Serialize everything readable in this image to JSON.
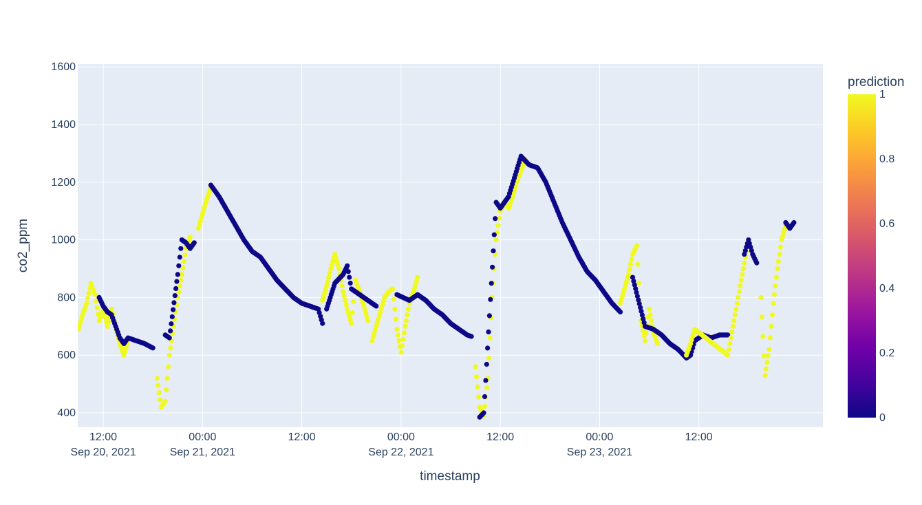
{
  "chart_data": {
    "type": "scatter",
    "xlabel": "timestamp",
    "ylabel": "co2_ppm",
    "xlim": [
      "2021-09-20T08:55",
      "2021-09-24T03:00"
    ],
    "ylim": [
      350,
      1610
    ],
    "grid": true,
    "x_ticks": [
      {
        "t": "2021-09-20T12:00",
        "label": "12:00",
        "sublabel": "Sep 20, 2021"
      },
      {
        "t": "2021-09-21T00:00",
        "label": "00:00",
        "sublabel": "Sep 21, 2021"
      },
      {
        "t": "2021-09-21T12:00",
        "label": "12:00",
        "sublabel": ""
      },
      {
        "t": "2021-09-22T00:00",
        "label": "00:00",
        "sublabel": "Sep 22, 2021"
      },
      {
        "t": "2021-09-22T12:00",
        "label": "12:00",
        "sublabel": ""
      },
      {
        "t": "2021-09-23T00:00",
        "label": "00:00",
        "sublabel": "Sep 23, 2021"
      },
      {
        "t": "2021-09-23T12:00",
        "label": "12:00",
        "sublabel": ""
      }
    ],
    "y_ticks": [
      400,
      600,
      800,
      1000,
      1200,
      1400,
      1600
    ],
    "colorbar": {
      "title": "prediction",
      "range": [
        0,
        1
      ],
      "ticks": [
        0,
        0.2,
        0.4,
        0.6,
        0.8,
        1
      ],
      "tick_labels": [
        "0",
        "0.2",
        "0.4",
        "0.6",
        "0.8",
        "1"
      ],
      "colors": [
        "#0d0887",
        "#46039f",
        "#7201a8",
        "#9c179e",
        "#bd3786",
        "#d8576b",
        "#ed7953",
        "#fb9f3a",
        "#fdca26",
        "#f0f921"
      ]
    },
    "marker_colors": {
      "0": "#0d0887",
      "1": "#f0f921"
    },
    "segments": [
      {
        "prediction": 1,
        "points": [
          [
            "2021-09-20T09:00",
            690
          ],
          [
            "2021-09-20T09:30",
            740
          ],
          [
            "2021-09-20T10:00",
            780
          ],
          [
            "2021-09-20T10:30",
            850
          ],
          [
            "2021-09-20T11:00",
            810
          ],
          [
            "2021-09-20T11:30",
            720
          ],
          [
            "2021-09-20T12:00",
            760
          ],
          [
            "2021-09-20T12:30",
            700
          ],
          [
            "2021-09-20T13:00",
            760
          ],
          [
            "2021-09-20T13:30",
            700
          ],
          [
            "2021-09-20T14:00",
            640
          ],
          [
            "2021-09-20T14:30",
            600
          ],
          [
            "2021-09-20T15:00",
            650
          ]
        ]
      },
      {
        "prediction": 0,
        "points": [
          [
            "2021-09-20T11:30",
            800
          ],
          [
            "2021-09-20T12:00",
            770
          ],
          [
            "2021-09-20T12:30",
            750
          ],
          [
            "2021-09-20T13:00",
            740
          ],
          [
            "2021-09-20T13:30",
            700
          ],
          [
            "2021-09-20T14:00",
            660
          ],
          [
            "2021-09-20T14:30",
            640
          ],
          [
            "2021-09-20T15:00",
            660
          ],
          [
            "2021-09-20T16:00",
            650
          ],
          [
            "2021-09-20T17:00",
            640
          ],
          [
            "2021-09-20T18:00",
            625
          ]
        ]
      },
      {
        "prediction": 1,
        "points": [
          [
            "2021-09-20T18:30",
            520
          ],
          [
            "2021-09-20T19:00",
            420
          ],
          [
            "2021-09-20T19:30",
            440
          ],
          [
            "2021-09-20T20:00",
            600
          ],
          [
            "2021-09-20T20:30",
            700
          ],
          [
            "2021-09-20T21:00",
            800
          ],
          [
            "2021-09-20T21:30",
            880
          ],
          [
            "2021-09-20T22:00",
            970
          ],
          [
            "2021-09-20T22:30",
            1010
          ]
        ]
      },
      {
        "prediction": 0,
        "points": [
          [
            "2021-09-20T19:30",
            670
          ],
          [
            "2021-09-20T20:00",
            660
          ],
          [
            "2021-09-20T21:00",
            880
          ],
          [
            "2021-09-20T21:30",
            1000
          ],
          [
            "2021-09-20T22:00",
            990
          ],
          [
            "2021-09-20T22:30",
            970
          ],
          [
            "2021-09-20T23:00",
            990
          ]
        ]
      },
      {
        "prediction": 1,
        "points": [
          [
            "2021-09-20T23:30",
            1040
          ],
          [
            "2021-09-21T00:00",
            1090
          ],
          [
            "2021-09-21T00:30",
            1140
          ],
          [
            "2021-09-21T01:00",
            1180
          ]
        ]
      },
      {
        "prediction": 0,
        "points": [
          [
            "2021-09-21T01:00",
            1190
          ],
          [
            "2021-09-21T02:00",
            1150
          ],
          [
            "2021-09-21T03:00",
            1100
          ],
          [
            "2021-09-21T04:00",
            1050
          ],
          [
            "2021-09-21T05:00",
            1000
          ],
          [
            "2021-09-21T06:00",
            960
          ],
          [
            "2021-09-21T07:00",
            940
          ],
          [
            "2021-09-21T08:00",
            900
          ],
          [
            "2021-09-21T09:00",
            860
          ],
          [
            "2021-09-21T10:00",
            830
          ],
          [
            "2021-09-21T11:00",
            800
          ],
          [
            "2021-09-21T12:00",
            780
          ],
          [
            "2021-09-21T13:00",
            770
          ],
          [
            "2021-09-21T14:00",
            760
          ],
          [
            "2021-09-21T14:30",
            710
          ]
        ]
      },
      {
        "prediction": 1,
        "points": [
          [
            "2021-09-21T14:30",
            790
          ],
          [
            "2021-09-21T15:00",
            840
          ],
          [
            "2021-09-21T15:30",
            900
          ],
          [
            "2021-09-21T16:00",
            950
          ],
          [
            "2021-09-21T16:30",
            900
          ],
          [
            "2021-09-21T17:00",
            820
          ],
          [
            "2021-09-21T17:30",
            760
          ],
          [
            "2021-09-21T18:00",
            710
          ],
          [
            "2021-09-21T18:30",
            860
          ],
          [
            "2021-09-21T19:00",
            820
          ],
          [
            "2021-09-21T19:30",
            770
          ],
          [
            "2021-09-21T20:00",
            720
          ]
        ]
      },
      {
        "prediction": 0,
        "points": [
          [
            "2021-09-21T15:00",
            760
          ],
          [
            "2021-09-21T16:00",
            850
          ],
          [
            "2021-09-21T17:00",
            880
          ],
          [
            "2021-09-21T17:30",
            910
          ],
          [
            "2021-09-21T18:00",
            830
          ],
          [
            "2021-09-21T19:00",
            810
          ],
          [
            "2021-09-21T20:00",
            790
          ],
          [
            "2021-09-21T21:00",
            770
          ]
        ]
      },
      {
        "prediction": 1,
        "points": [
          [
            "2021-09-21T20:30",
            650
          ],
          [
            "2021-09-21T21:00",
            700
          ],
          [
            "2021-09-21T21:30",
            750
          ],
          [
            "2021-09-21T22:00",
            800
          ],
          [
            "2021-09-21T22:30",
            820
          ],
          [
            "2021-09-21T23:00",
            830
          ],
          [
            "2021-09-21T23:30",
            690
          ],
          [
            "2021-09-22T00:00",
            610
          ],
          [
            "2021-09-22T00:30",
            700
          ],
          [
            "2021-09-22T01:00",
            780
          ],
          [
            "2021-09-22T01:30",
            820
          ],
          [
            "2021-09-22T02:00",
            870
          ]
        ]
      },
      {
        "prediction": 0,
        "points": [
          [
            "2021-09-21T23:30",
            810
          ],
          [
            "2021-09-22T01:00",
            790
          ],
          [
            "2021-09-22T01:30",
            800
          ],
          [
            "2021-09-22T02:00",
            810
          ],
          [
            "2021-09-22T03:00",
            790
          ],
          [
            "2021-09-22T04:00",
            760
          ],
          [
            "2021-09-22T05:00",
            740
          ],
          [
            "2021-09-22T06:00",
            710
          ],
          [
            "2021-09-22T07:00",
            690
          ],
          [
            "2021-09-22T08:00",
            670
          ],
          [
            "2021-09-22T08:30",
            665
          ]
        ]
      },
      {
        "prediction": 1,
        "points": [
          [
            "2021-09-22T09:00",
            560
          ],
          [
            "2021-09-22T09:30",
            420
          ],
          [
            "2021-09-22T10:00",
            390
          ],
          [
            "2021-09-22T10:30",
            520
          ],
          [
            "2021-09-22T11:00",
            800
          ],
          [
            "2021-09-22T11:30",
            1000
          ],
          [
            "2021-09-22T12:00",
            1100
          ],
          [
            "2021-09-22T12:30",
            1130
          ],
          [
            "2021-09-22T13:00",
            1110
          ],
          [
            "2021-09-22T13:30",
            1150
          ],
          [
            "2021-09-22T14:00",
            1200
          ],
          [
            "2021-09-22T14:30",
            1240
          ],
          [
            "2021-09-22T15:00",
            1280
          ]
        ]
      },
      {
        "prediction": 0,
        "points": [
          [
            "2021-09-22T09:30",
            385
          ],
          [
            "2021-09-22T10:00",
            400
          ],
          [
            "2021-09-22T11:30",
            1130
          ],
          [
            "2021-09-22T12:00",
            1110
          ],
          [
            "2021-09-22T13:00",
            1150
          ],
          [
            "2021-09-22T14:30",
            1290
          ],
          [
            "2021-09-22T15:30",
            1260
          ],
          [
            "2021-09-22T16:30",
            1250
          ],
          [
            "2021-09-22T17:30",
            1200
          ],
          [
            "2021-09-22T18:30",
            1130
          ],
          [
            "2021-09-22T19:30",
            1060
          ],
          [
            "2021-09-22T20:30",
            1000
          ],
          [
            "2021-09-22T21:30",
            940
          ],
          [
            "2021-09-22T22:30",
            890
          ],
          [
            "2021-09-22T23:30",
            860
          ],
          [
            "2021-09-23T00:30",
            820
          ],
          [
            "2021-09-23T01:30",
            780
          ],
          [
            "2021-09-23T02:30",
            750
          ]
        ]
      },
      {
        "prediction": 1,
        "points": [
          [
            "2021-09-23T02:30",
            780
          ],
          [
            "2021-09-23T03:00",
            830
          ],
          [
            "2021-09-23T03:30",
            880
          ],
          [
            "2021-09-23T04:00",
            950
          ],
          [
            "2021-09-23T04:30",
            980
          ],
          [
            "2021-09-23T05:00",
            720
          ],
          [
            "2021-09-23T05:30",
            650
          ],
          [
            "2021-09-23T06:00",
            760
          ],
          [
            "2021-09-23T06:30",
            680
          ],
          [
            "2021-09-23T07:00",
            640
          ]
        ]
      },
      {
        "prediction": 0,
        "points": [
          [
            "2021-09-23T04:00",
            870
          ],
          [
            "2021-09-23T05:30",
            700
          ],
          [
            "2021-09-23T06:30",
            690
          ],
          [
            "2021-09-23T07:30",
            670
          ],
          [
            "2021-09-23T08:30",
            640
          ],
          [
            "2021-09-23T09:30",
            620
          ],
          [
            "2021-09-23T10:30",
            590
          ],
          [
            "2021-09-23T11:00",
            600
          ],
          [
            "2021-09-23T11:30",
            650
          ],
          [
            "2021-09-23T12:30",
            670
          ],
          [
            "2021-09-23T13:30",
            660
          ],
          [
            "2021-09-23T14:30",
            670
          ],
          [
            "2021-09-23T15:30",
            670
          ]
        ]
      },
      {
        "prediction": 1,
        "points": [
          [
            "2021-09-23T10:30",
            600
          ],
          [
            "2021-09-23T11:00",
            640
          ],
          [
            "2021-09-23T11:30",
            690
          ],
          [
            "2021-09-23T15:30",
            600
          ],
          [
            "2021-09-23T16:00",
            680
          ],
          [
            "2021-09-23T16:30",
            760
          ],
          [
            "2021-09-23T17:00",
            840
          ],
          [
            "2021-09-23T17:30",
            920
          ],
          [
            "2021-09-23T18:00",
            1000
          ]
        ]
      },
      {
        "prediction": 0,
        "points": [
          [
            "2021-09-23T17:30",
            950
          ],
          [
            "2021-09-23T18:00",
            1000
          ],
          [
            "2021-09-23T18:30",
            950
          ],
          [
            "2021-09-23T19:00",
            920
          ]
        ]
      },
      {
        "prediction": 1,
        "points": [
          [
            "2021-09-23T19:30",
            800
          ],
          [
            "2021-09-23T20:00",
            530
          ],
          [
            "2021-09-23T20:30",
            620
          ],
          [
            "2021-09-23T21:00",
            780
          ],
          [
            "2021-09-23T21:30",
            900
          ],
          [
            "2021-09-23T22:00",
            1000
          ],
          [
            "2021-09-23T22:30",
            1050
          ]
        ]
      },
      {
        "prediction": 0,
        "points": [
          [
            "2021-09-23T22:30",
            1060
          ],
          [
            "2021-09-23T23:00",
            1040
          ],
          [
            "2021-09-23T23:30",
            1060
          ]
        ]
      }
    ]
  }
}
